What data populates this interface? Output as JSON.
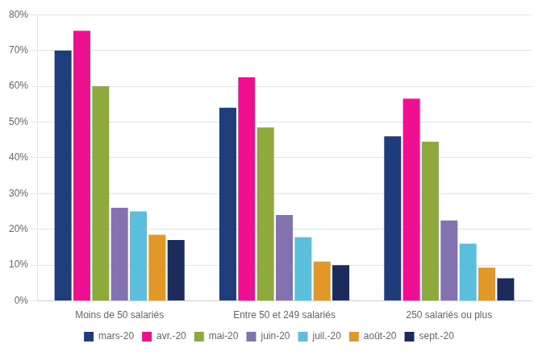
{
  "chart_data": {
    "type": "bar",
    "categories": [
      "Moins de 50 salariés",
      "Entre 50 et 249 salariés",
      "250 salariés ou plus"
    ],
    "series": [
      {
        "name": "mars-20",
        "color": "#1f3d7a",
        "values": [
          0.7,
          0.54,
          0.46
        ]
      },
      {
        "name": "avr.-20",
        "color": "#ee1090",
        "values": [
          0.755,
          0.625,
          0.565
        ]
      },
      {
        "name": "mai-20",
        "color": "#8faa3c",
        "values": [
          0.6,
          0.485,
          0.445
        ]
      },
      {
        "name": "juin-20",
        "color": "#8272b0",
        "values": [
          0.26,
          0.24,
          0.225
        ]
      },
      {
        "name": "juil.-20",
        "color": "#5bbfdc",
        "values": [
          0.25,
          0.178,
          0.16
        ]
      },
      {
        "name": "août-20",
        "color": "#e09828",
        "values": [
          0.185,
          0.11,
          0.093
        ]
      },
      {
        "name": "sept.-20",
        "color": "#1a2b5c",
        "values": [
          0.17,
          0.1,
          0.063
        ]
      }
    ],
    "ylim": [
      0,
      0.8
    ],
    "yticks": [
      {
        "value": 0.0,
        "label": "0%"
      },
      {
        "value": 0.1,
        "label": "10%"
      },
      {
        "value": 0.2,
        "label": "20%"
      },
      {
        "value": 0.3,
        "label": "30%"
      },
      {
        "value": 0.4,
        "label": "40%"
      },
      {
        "value": 0.5,
        "label": "50%"
      },
      {
        "value": 0.6,
        "label": "60%"
      },
      {
        "value": 0.7,
        "label": "70%"
      },
      {
        "value": 0.8,
        "label": "80%"
      }
    ],
    "grid": true,
    "legend": "bottom"
  }
}
